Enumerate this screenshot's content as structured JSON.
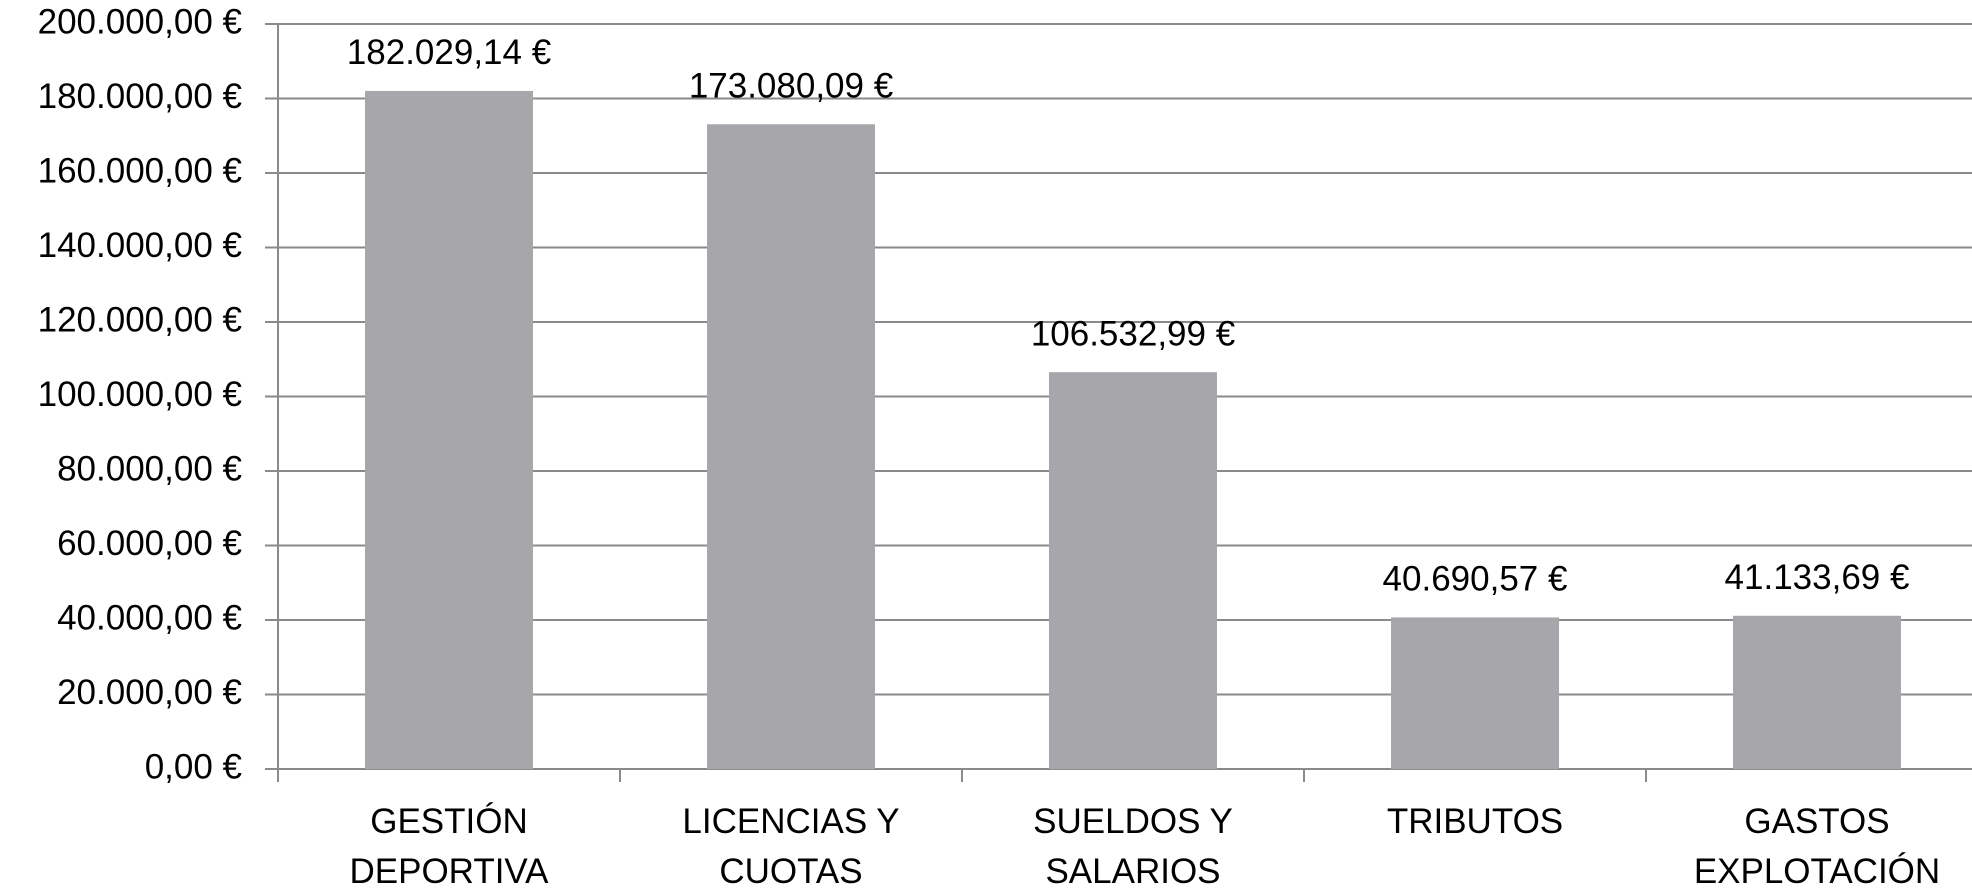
{
  "chart_data": {
    "type": "bar",
    "categories": [
      "GESTIÓN DEPORTIVA",
      "LICENCIAS Y CUOTAS",
      "SUELDOS Y SALARIOS",
      "TRIBUTOS",
      "GASTOS EXPLOTACIÓN"
    ],
    "values": [
      182029.14,
      173080.09,
      106532.99,
      40690.57,
      41133.69
    ],
    "value_labels": [
      "182.029,14 €",
      "173.080,09 €",
      "106.532,99 €",
      "40.690,57 €",
      "41.133,69 €"
    ],
    "color": "#a7a6ab",
    "ylim": [
      0,
      200000
    ],
    "yticks": [
      {
        "value": 0,
        "label": "0,00 €"
      },
      {
        "value": 20000,
        "label": "20.000,00 €"
      },
      {
        "value": 40000,
        "label": "40.000,00 €"
      },
      {
        "value": 60000,
        "label": "60.000,00 €"
      },
      {
        "value": 80000,
        "label": "80.000,00 €"
      },
      {
        "value": 100000,
        "label": "100.000,00 €"
      },
      {
        "value": 120000,
        "label": "120.000,00 €"
      },
      {
        "value": 140000,
        "label": "140.000,00 €"
      },
      {
        "value": 160000,
        "label": "160.000,00 €"
      },
      {
        "value": 180000,
        "label": "180.000,00 €"
      },
      {
        "value": 200000,
        "label": "200.000,00 €"
      }
    ],
    "grid": true
  }
}
